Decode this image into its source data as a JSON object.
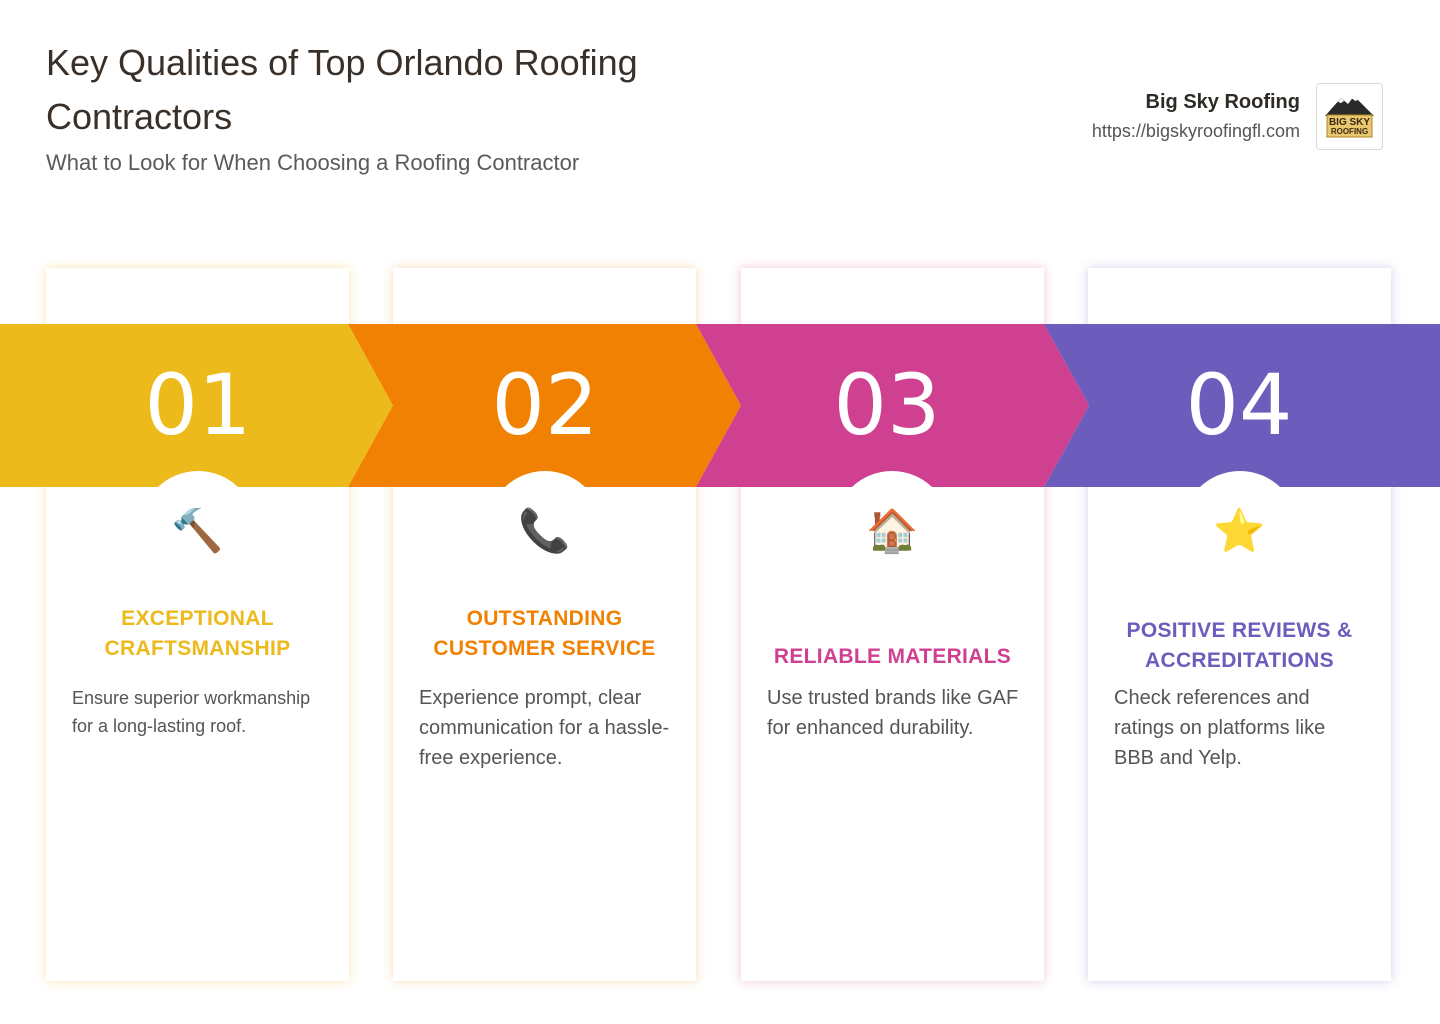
{
  "header": {
    "title": "Key Qualities of Top Orlando Roofing Contractors",
    "subtitle": "What to Look for When Choosing a Roofing Contractor"
  },
  "brand": {
    "name": "Big Sky Roofing",
    "url": "https://bigskyroofingfl.com",
    "logo_text_line1": "BIG SKY",
    "logo_text_line2": "ROOFING"
  },
  "steps": [
    {
      "number": "01",
      "icon": "hammer-icon",
      "glyph": "🔨",
      "heading": "EXCEPTIONAL CRAFTSMANSHIP",
      "description": "Ensure superior workmanship for a long-lasting roof.",
      "color": "#ECBA1A"
    },
    {
      "number": "02",
      "icon": "phone-icon",
      "glyph": "📞",
      "heading": "OUTSTANDING CUSTOMER SERVICE",
      "description": "Experience prompt, clear communication for a hassle-free experience.",
      "color": "#F08102"
    },
    {
      "number": "03",
      "icon": "house-icon",
      "glyph": "🏠",
      "heading": "RELIABLE MATERIALS",
      "description": "Use trusted brands like GAF for enhanced durability.",
      "color": "#D04090"
    },
    {
      "number": "04",
      "icon": "star-icon",
      "glyph": "⭐",
      "heading": "POSITIVE REVIEWS & ACCREDITATIONS",
      "description": "Check references and ratings on platforms like BBB and Yelp.",
      "color": "#6C5CBC"
    }
  ]
}
